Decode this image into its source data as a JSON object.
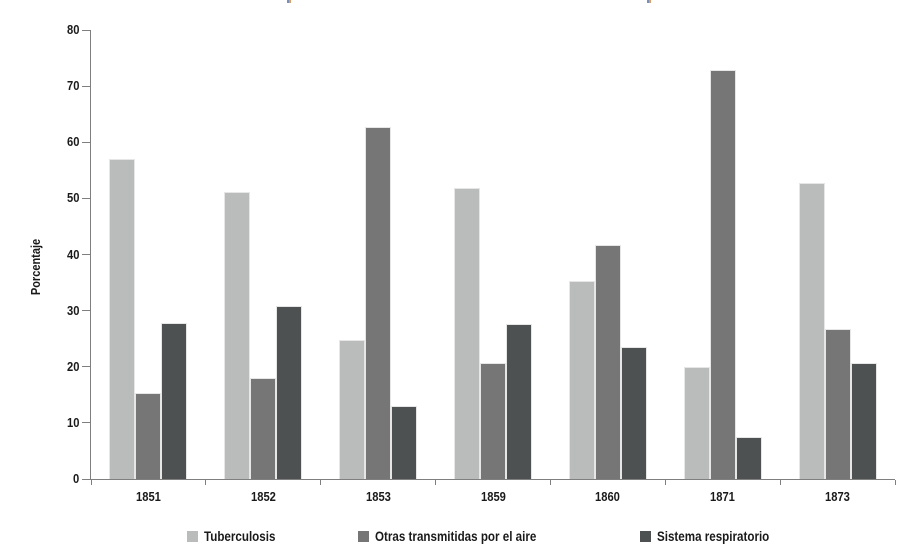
{
  "y_axis_title": "Porcentaje",
  "chart_data": {
    "type": "bar",
    "subtype": "grouped",
    "title": "",
    "xlabel": "",
    "ylabel": "Porcentaje",
    "ylim": [
      0,
      80
    ],
    "yticks": [
      0,
      10,
      20,
      30,
      40,
      50,
      60,
      70,
      80
    ],
    "grid": false,
    "legend_position": "bottom",
    "categories": [
      "1851",
      "1852",
      "1853",
      "1859",
      "1860",
      "1871",
      "1873"
    ],
    "series": [
      {
        "name": "Tuberculosis",
        "color": "#b9bcba",
        "values": [
          57.1,
          51.2,
          24.7,
          51.9,
          35.3,
          20.0,
          52.7
        ]
      },
      {
        "name": "Otras transmitidas por el aire",
        "color": "#767676",
        "values": [
          15.4,
          18.0,
          62.7,
          20.7,
          41.7,
          72.8,
          26.7
        ]
      },
      {
        "name": "Sistema respiratorio",
        "color": "#4e5152",
        "values": [
          27.8,
          30.9,
          13.0,
          27.7,
          23.6,
          7.5,
          20.7
        ]
      }
    ],
    "axis_color": "#7f7f7f",
    "text_color": "#1a1a1a"
  }
}
